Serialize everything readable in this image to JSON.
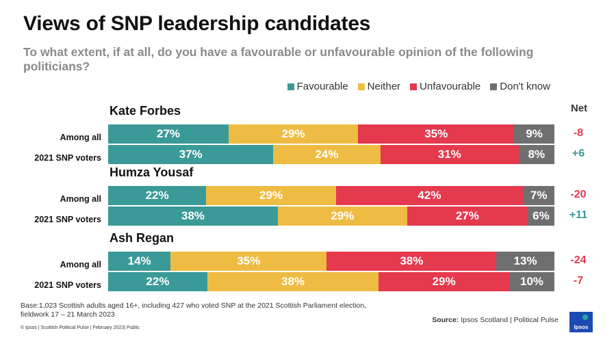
{
  "title": "Views of SNP leadership candidates",
  "subtitle": "To what extent, if at all, do you have a favourable or unfavourable opinion of the following politicians?",
  "net_header": "Net",
  "footnote": "Base:1,023 Scottish adults aged 16+, including 427 who voted SNP at the 2021 Scottish Parliament election, fieldwork 17 – 21 March 2023",
  "copyright": "© Ipsos | Scottish Political Pulse | February 2023| Public",
  "source": {
    "label": "Source:",
    "text": " Ipsos Scotland | Political Pulse"
  },
  "logo_text": "Ipsos",
  "colors": {
    "Favourable": "#3a9a98",
    "Neither": "#efbc43",
    "Unfavourable": "#e5394e",
    "Don't know": "#6f6f6f",
    "net_negative": "#e5394e",
    "net_positive": "#3a9a98"
  },
  "chart_data": {
    "type": "bar",
    "stacked": true,
    "orientation": "horizontal",
    "series_names": [
      "Favourable",
      "Neither",
      "Unfavourable",
      "Don't know"
    ],
    "legend_position": "top-right",
    "unit": "%",
    "groups": [
      {
        "name": "Kate Forbes",
        "rows": [
          {
            "label": "Among all",
            "values": [
              27,
              29,
              35,
              9
            ],
            "net": "-8"
          },
          {
            "label": "2021 SNP voters",
            "values": [
              37,
              24,
              31,
              8
            ],
            "net": "+6"
          }
        ]
      },
      {
        "name": "Humza Yousaf",
        "rows": [
          {
            "label": "Among all",
            "values": [
              22,
              29,
              42,
              7
            ],
            "net": "-20"
          },
          {
            "label": "2021 SNP voters",
            "values": [
              38,
              29,
              27,
              6
            ],
            "net": "+11"
          }
        ]
      },
      {
        "name": "Ash Regan",
        "rows": [
          {
            "label": "Among all",
            "values": [
              14,
              35,
              38,
              13
            ],
            "net": "-24"
          },
          {
            "label": "2021 SNP voters",
            "values": [
              22,
              38,
              29,
              10
            ],
            "net": "-7"
          }
        ]
      }
    ]
  }
}
